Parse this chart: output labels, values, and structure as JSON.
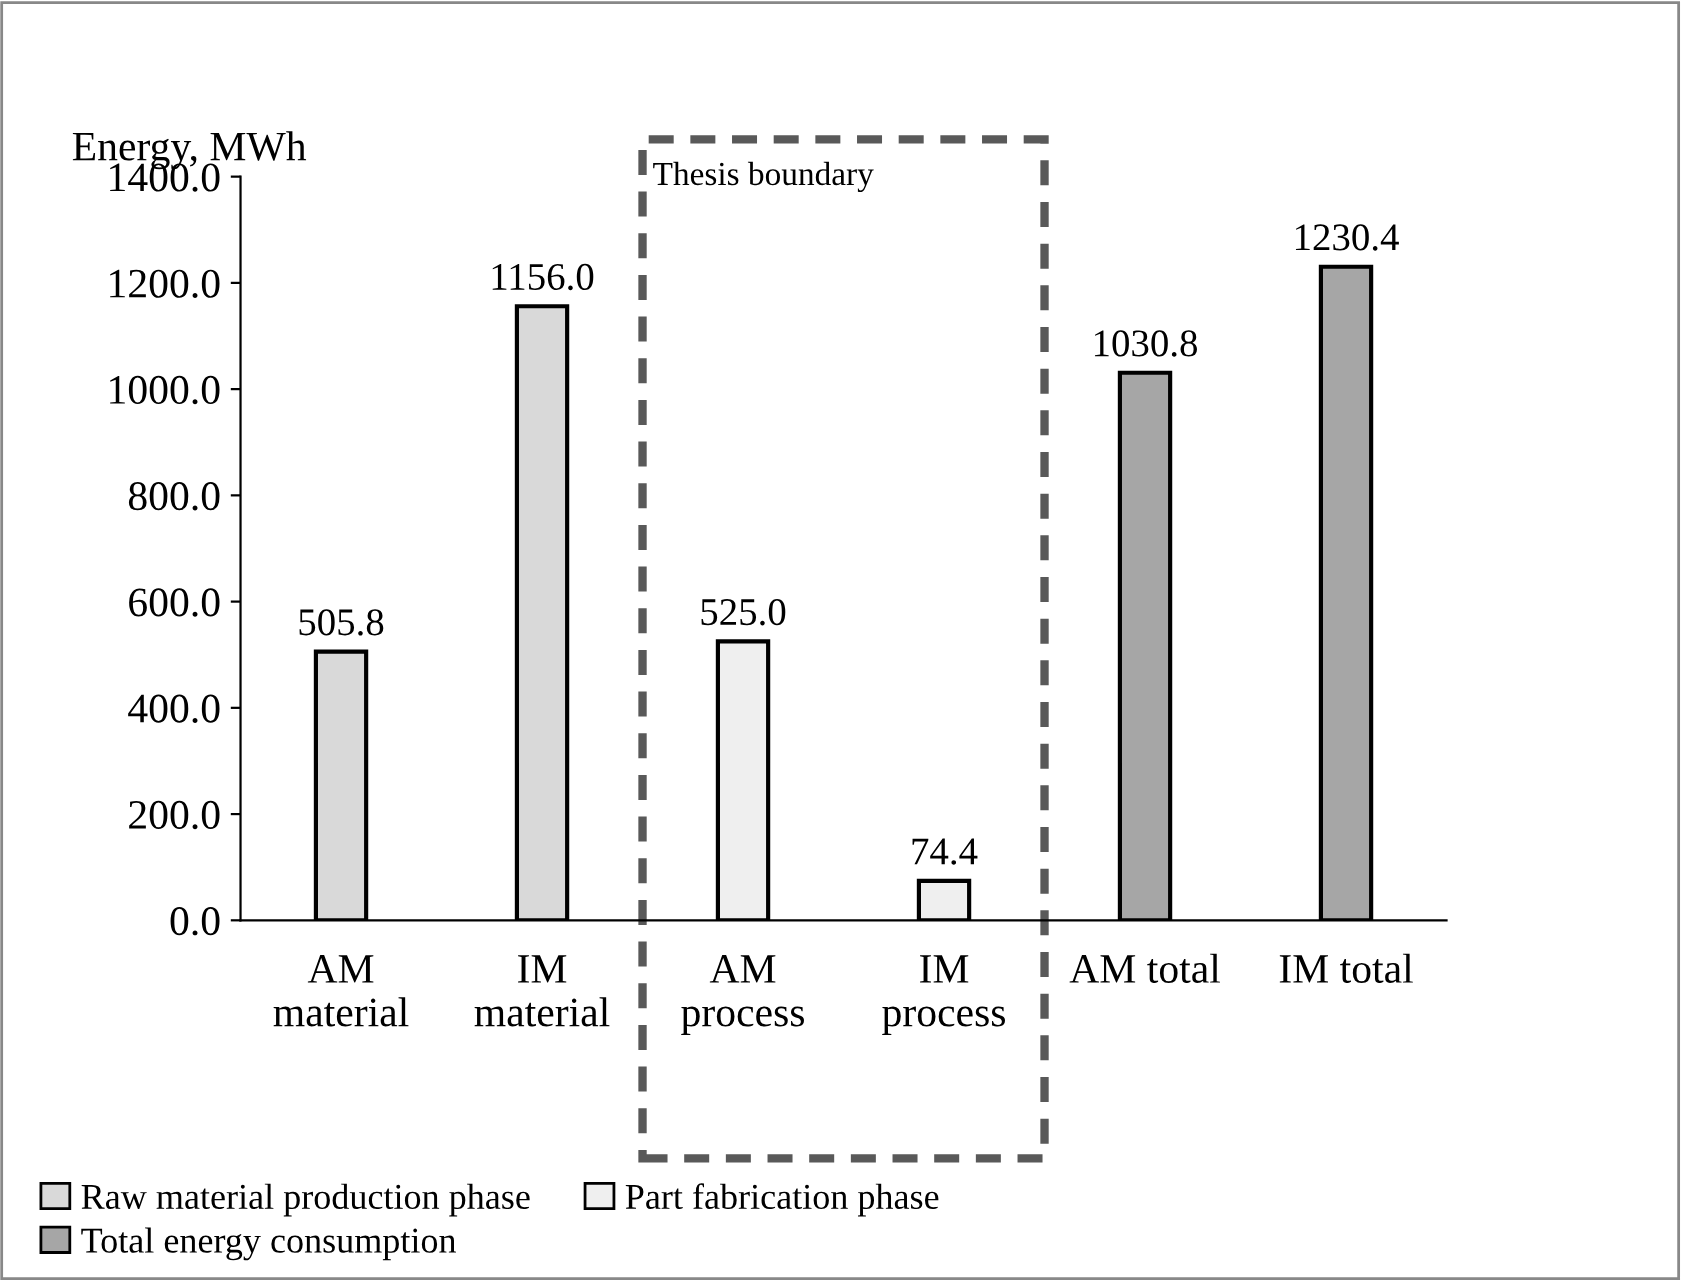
{
  "chart_data": {
    "type": "bar",
    "ylabel": "Energy, MWh",
    "categories": [
      "AM\nmaterial",
      "IM\nmaterial",
      "AM\nprocess",
      "IM\nprocess",
      "AM total",
      "IM total"
    ],
    "series": [
      {
        "name": "Raw material production phase",
        "color": "#d9d9d9",
        "values": [
          505.8,
          1156.0,
          null,
          null,
          null,
          null
        ],
        "value_labels": [
          "505.8",
          "1156.0",
          null,
          null,
          null,
          null
        ]
      },
      {
        "name": "Part fabrication phase",
        "color": "#efefef",
        "values": [
          null,
          null,
          525.0,
          74.4,
          null,
          null
        ],
        "value_labels": [
          null,
          null,
          "525.0",
          "74.4",
          null,
          null
        ]
      },
      {
        "name": "Total energy consumption",
        "color": "#a6a6a6",
        "values": [
          null,
          null,
          null,
          null,
          1030.8,
          1230.4
        ],
        "value_labels": [
          null,
          null,
          null,
          null,
          "1030.8",
          "1230.4"
        ]
      }
    ],
    "ylim": [
      0,
      1400
    ],
    "yticks": [
      {
        "value": 0,
        "label": "0.0"
      },
      {
        "value": 200,
        "label": "200.0"
      },
      {
        "value": 400,
        "label": "400.0"
      },
      {
        "value": 600,
        "label": "600.0"
      },
      {
        "value": 800,
        "label": "800.0"
      },
      {
        "value": 1000,
        "label": "1000.0"
      },
      {
        "value": 1200,
        "label": "1200.0"
      },
      {
        "value": 1400,
        "label": "1400.0"
      }
    ],
    "annotations": [
      "Thesis boundary"
    ],
    "legend": "bottom",
    "grid": false
  }
}
